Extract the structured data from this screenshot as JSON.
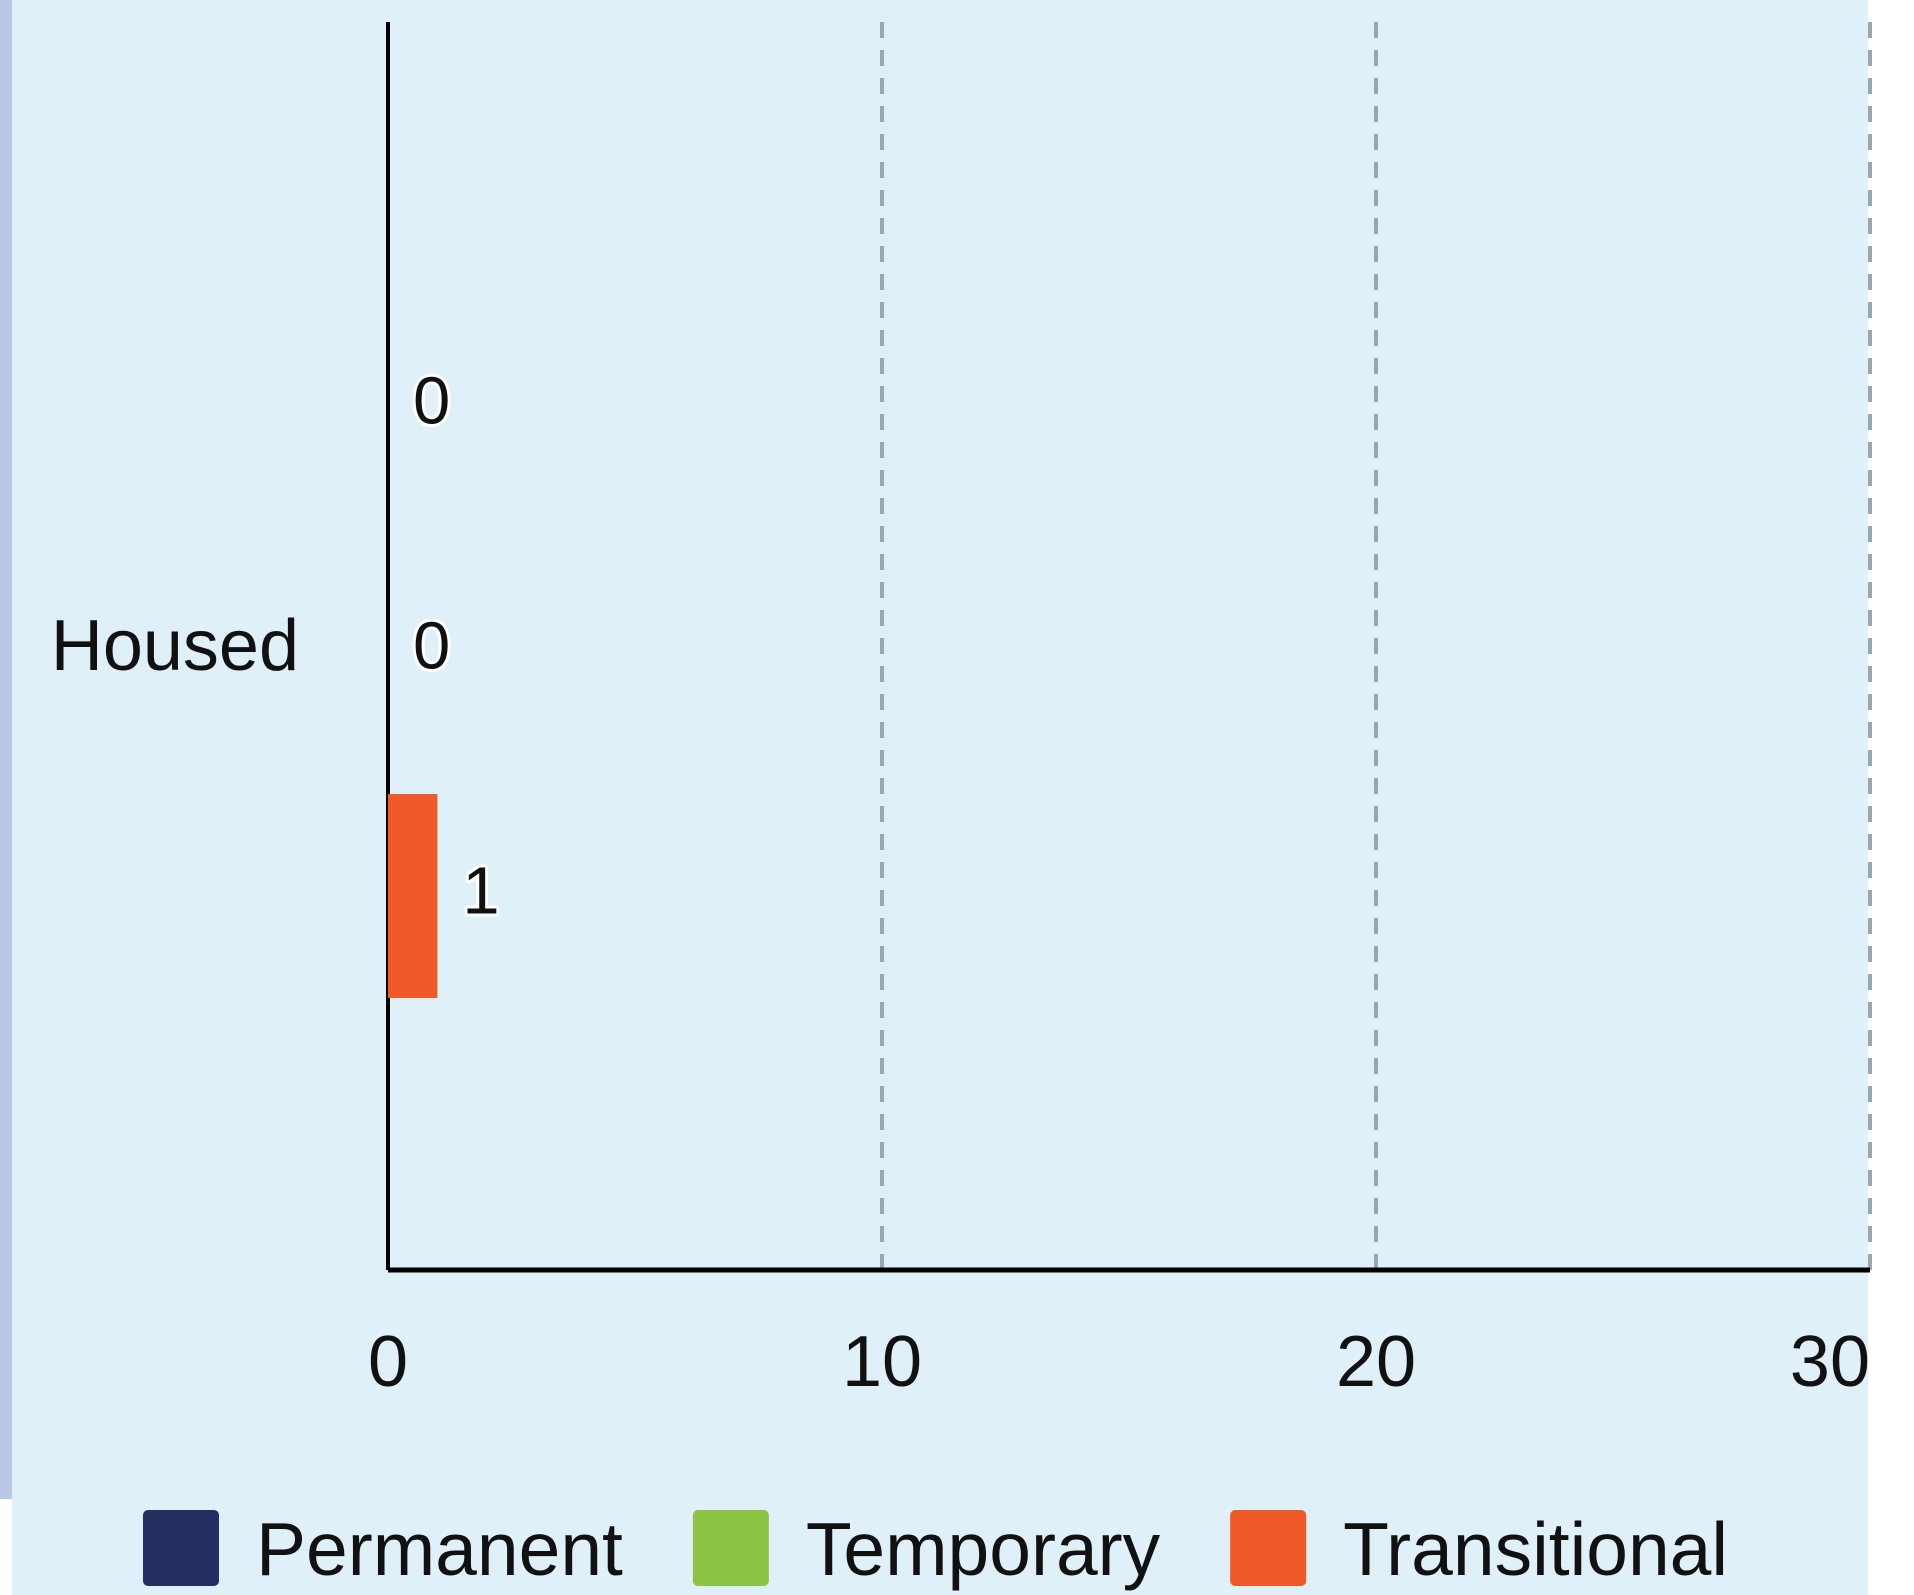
{
  "chart_data": {
    "type": "hbar",
    "categories": [
      "Housed"
    ],
    "series": [
      {
        "name": "Permanent",
        "color": "#232f61",
        "values": [
          0
        ]
      },
      {
        "name": "Temporary",
        "color": "#8cc443",
        "values": [
          0
        ]
      },
      {
        "name": "Transitional",
        "color": "#f05a28",
        "values": [
          1
        ]
      }
    ],
    "xlim": [
      0,
      30
    ],
    "xticks": [
      0,
      10,
      20,
      30
    ],
    "grid": true,
    "legend": "bottom"
  }
}
